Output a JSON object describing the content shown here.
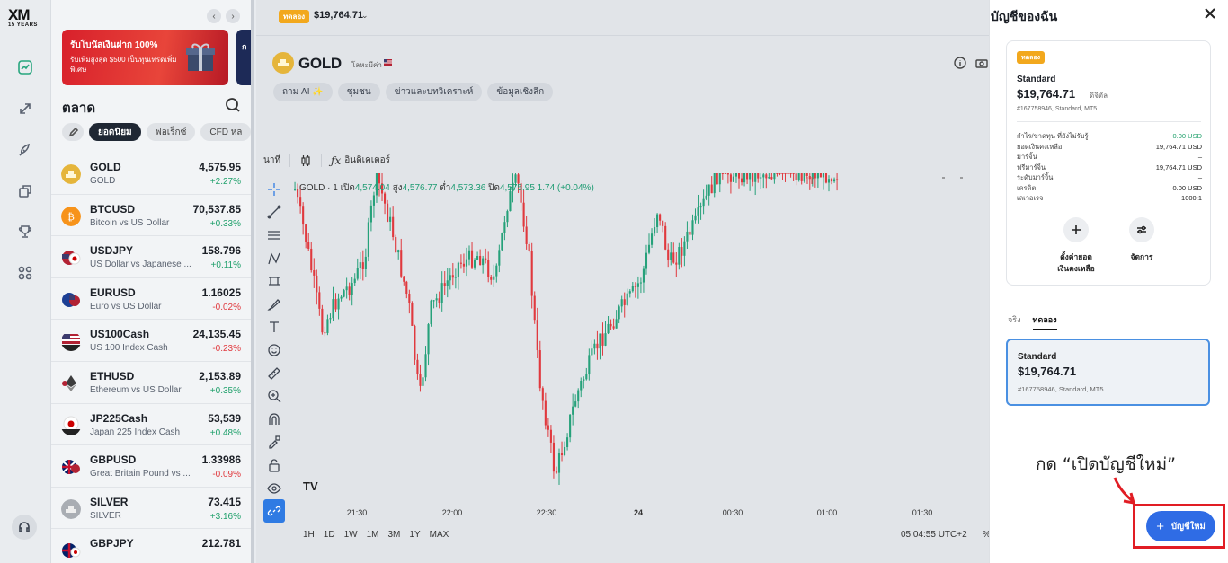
{
  "app": {
    "logo": "XM",
    "logo_sub": "15 YEARS"
  },
  "rail": {
    "icons": [
      "chart-icon",
      "transfer-icon",
      "rocket-icon",
      "copy-icon",
      "trophy-icon",
      "apps-icon",
      "support-icon"
    ]
  },
  "market": {
    "promo_title": "รับโบนัสเงินฝาก 100%",
    "promo_text": "รับเพิ่มสูงสุด $500 เป็นทุนเทรดเพิ่มพิเศษ",
    "promo2_text": "ก",
    "title": "ตลาด",
    "tabs": [
      "ยอดนิยม",
      "ฟอเร็กซ์",
      "CFD หล"
    ],
    "items": [
      {
        "symbol": "GOLD",
        "desc": "GOLD",
        "price": "4,575.95",
        "change": "+2.27%",
        "dir": "up"
      },
      {
        "symbol": "BTCUSD",
        "desc": "Bitcoin vs US Dollar",
        "price": "70,537.85",
        "change": "+0.33%",
        "dir": "up"
      },
      {
        "symbol": "USDJPY",
        "desc": "US Dollar vs Japanese ...",
        "price": "158.796",
        "change": "+0.11%",
        "dir": "up"
      },
      {
        "symbol": "EURUSD",
        "desc": "Euro vs US Dollar",
        "price": "1.16025",
        "change": "-0.02%",
        "dir": "down"
      },
      {
        "symbol": "US100Cash",
        "desc": "US 100 Index Cash",
        "price": "24,135.45",
        "change": "-0.23%",
        "dir": "down"
      },
      {
        "symbol": "ETHUSD",
        "desc": "Ethereum vs US Dollar",
        "price": "2,153.89",
        "change": "+0.35%",
        "dir": "up"
      },
      {
        "symbol": "JP225Cash",
        "desc": "Japan 225 Index Cash",
        "price": "53,539",
        "change": "+0.48%",
        "dir": "up"
      },
      {
        "symbol": "GBPUSD",
        "desc": "Great Britain Pound vs ...",
        "price": "1.33986",
        "change": "-0.09%",
        "dir": "down"
      },
      {
        "symbol": "SILVER",
        "desc": "SILVER",
        "price": "73.415",
        "change": "+3.16%",
        "dir": "up"
      },
      {
        "symbol": "GBPJPY",
        "desc": "",
        "price": "212.781",
        "change": "",
        "dir": "up"
      }
    ]
  },
  "chart": {
    "demo_badge": "ทดลอง",
    "top_balance": "$19,764.71",
    "symbol": "GOLD",
    "symbol_sub": "โลหะมีค่า",
    "pills": [
      "ถาม AI ✨",
      "ชุมชน",
      "ข่าวและบทวิเคราะห์",
      "ข้อมูลเชิงลึก"
    ],
    "interval": "นาที",
    "indicators": "อินดิเคเตอร์",
    "ohlc": {
      "name": "GOLD · 1",
      "open_label": "เปิด",
      "open": "4,574.04",
      "high_label": "สูง",
      "high": "4,576.77",
      "low_label": "ต่ำ",
      "low": "4,573.36",
      "close_label": "ปิด",
      "close": "4,575.95",
      "change": "1.74 (+0.04%)"
    },
    "x_ticks": [
      "21:30",
      "22:00",
      "22:30",
      "24",
      "00:30",
      "01:00",
      "01:30"
    ],
    "ranges": [
      "1H",
      "1D",
      "1W",
      "1M",
      "3M",
      "1Y",
      "MAX"
    ],
    "clock": "05:04:55 UTC+2",
    "pct": "%",
    "tv_logo": "TV"
  },
  "account_panel": {
    "title": "บัญชีของฉัน",
    "badge": "ทดลอง",
    "type": "Standard",
    "balance": "$19,764.71",
    "currency": "ดิจิตัล",
    "meta": "#167758946, Standard, MT5",
    "stats": [
      {
        "label": "กำไร/ขาดทุน ที่ยังไม่รับรู้",
        "value": "0.00 USD",
        "green": true
      },
      {
        "label": "ยอดเงินคงเหลือ",
        "value": "19,764.71 USD",
        "green": false
      },
      {
        "label": "มาร์จิ้น",
        "value": "–",
        "green": false
      },
      {
        "label": "ฟรีมาร์จิ้น",
        "value": "19,764.71 USD",
        "green": false
      },
      {
        "label": "ระดับมาร์จิ้น",
        "value": "–",
        "green": false
      },
      {
        "label": "เครดิต",
        "value": "0.00 USD",
        "green": false
      },
      {
        "label": "เลเวอเรจ",
        "value": "1000:1",
        "green": false
      }
    ],
    "action_set_balance": "ตั้งค่ายอด\nเงินคงเหลือ",
    "action_manage": "จัดการ",
    "tab_real": "จริง",
    "tab_demo": "ทดลอง",
    "selected": {
      "type": "Standard",
      "balance": "$19,764.71",
      "meta": "#167758946, Standard, MT5"
    },
    "annotation": "กด “เปิดบัญชีใหม่”",
    "new_account_button": "บัญชีใหม่"
  }
}
